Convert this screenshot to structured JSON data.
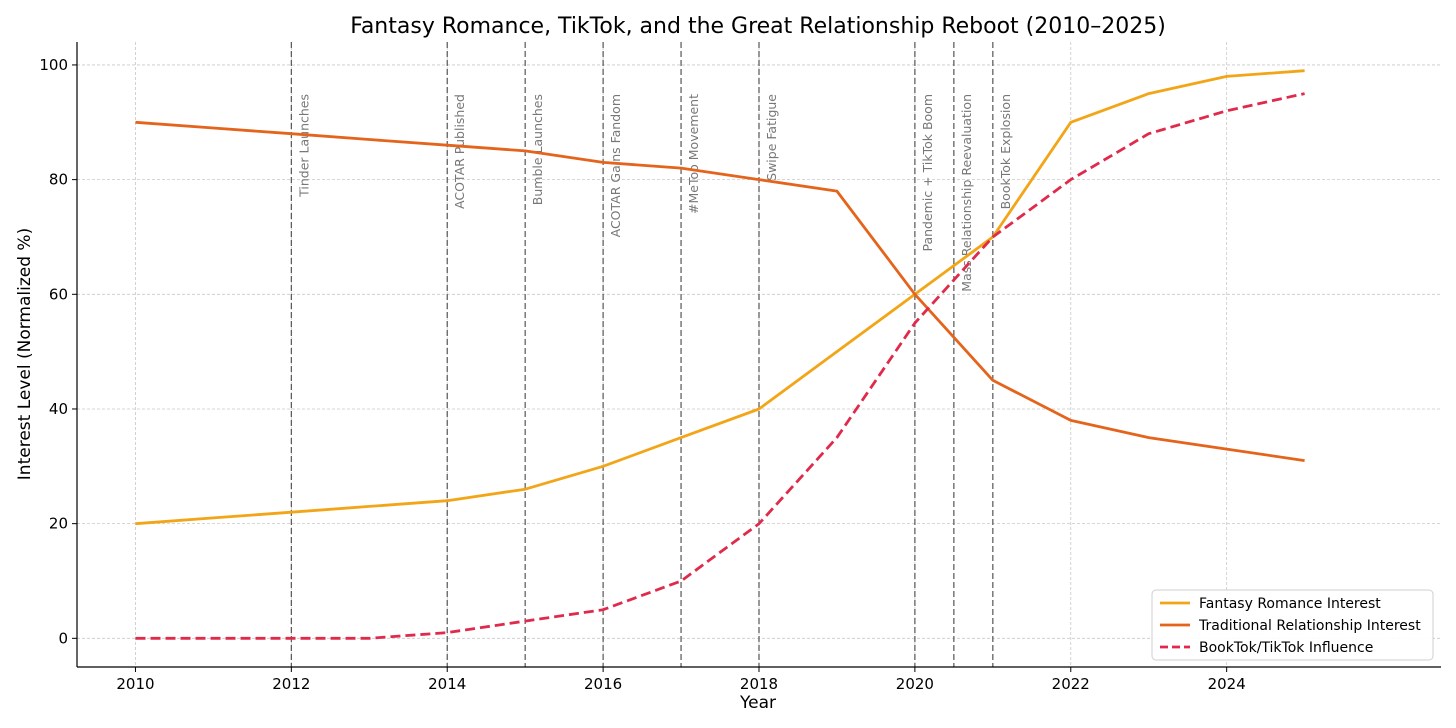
{
  "chart_data": {
    "type": "line",
    "title": "Fantasy Romance, TikTok, and the Great Relationship Reboot (2010–2025)",
    "xlabel": "Year",
    "ylabel": "Interest Level (Normalized %)",
    "xlim": [
      2009.25,
      2026.75
    ],
    "ylim": [
      -5,
      104
    ],
    "xticks": [
      2010,
      2012,
      2014,
      2016,
      2018,
      2020,
      2022,
      2024
    ],
    "yticks": [
      0,
      20,
      40,
      60,
      80,
      100
    ],
    "grid": true,
    "legend_position": "lower-right",
    "x": [
      2010,
      2011,
      2012,
      2013,
      2014,
      2015,
      2016,
      2017,
      2018,
      2019,
      2020,
      2021,
      2022,
      2023,
      2024,
      2025
    ],
    "series": [
      {
        "name": "Fantasy Romance Interest",
        "color": "#f2a516",
        "style": "solid",
        "values": [
          20,
          21,
          22,
          23,
          24,
          26,
          30,
          35,
          40,
          50,
          60,
          70,
          90,
          95,
          98,
          99
        ]
      },
      {
        "name": "Traditional Relationship Interest",
        "color": "#e4641c",
        "style": "solid",
        "values": [
          90,
          89,
          88,
          87,
          86,
          85,
          83,
          82,
          80,
          78,
          60,
          45,
          38,
          35,
          33,
          31
        ]
      },
      {
        "name": "BookTok/TikTok Influence",
        "color": "#e02a4b",
        "style": "dashed",
        "values": [
          0,
          0,
          0,
          0,
          1,
          3,
          5,
          10,
          20,
          35,
          55,
          70,
          80,
          88,
          92,
          95
        ]
      }
    ],
    "events": [
      {
        "year": 2012,
        "label": "Tinder Launches"
      },
      {
        "year": 2014,
        "label": "ACOTAR Published"
      },
      {
        "year": 2015,
        "label": "Bumble Launches"
      },
      {
        "year": 2016,
        "label": "ACOTAR Gains Fandom"
      },
      {
        "year": 2017,
        "label": "#MeToo Movement"
      },
      {
        "year": 2018,
        "label": "Swipe Fatigue"
      },
      {
        "year": 2020,
        "label": "Pandemic + TikTok Boom"
      },
      {
        "year": 2020.5,
        "label": "Mass Relationship Reevaluation"
      },
      {
        "year": 2021,
        "label": "BookTok Explosion"
      }
    ],
    "colors": {
      "grid": "#c8c8c8",
      "event_line": "#555555",
      "event_text": "#777777"
    }
  }
}
